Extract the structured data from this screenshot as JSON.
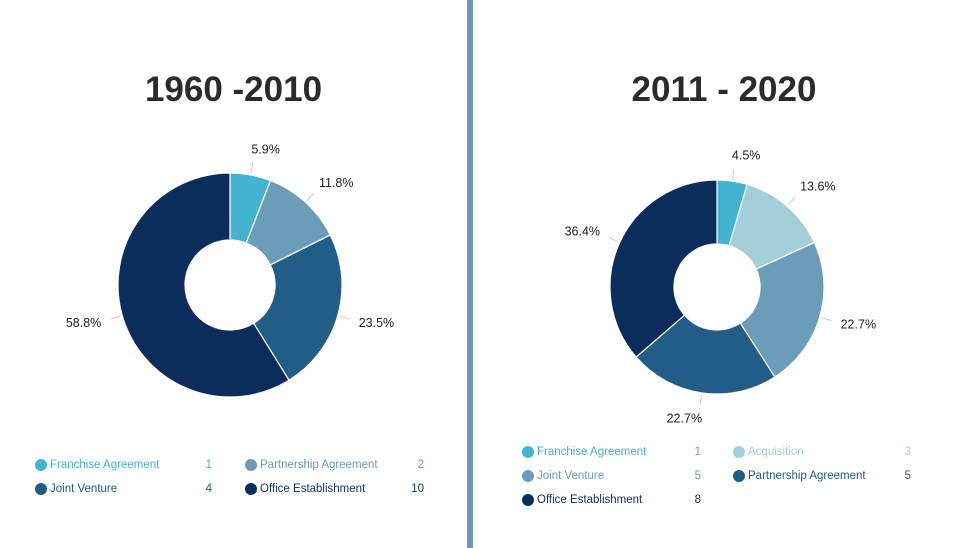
{
  "chart_data": [
    {
      "type": "pie",
      "title": "1960 -2010",
      "slices": [
        {
          "label": "Franchise Agreement",
          "value": 1,
          "percent_label": "5.9%",
          "color": "#44b3d1"
        },
        {
          "label": "Partnership Agreement",
          "value": 2,
          "percent_label": "11.8%",
          "color": "#6c9db8"
        },
        {
          "label": "Joint Venture",
          "value": 4,
          "percent_label": "23.5%",
          "color": "#215d87"
        },
        {
          "label": "Office Establishment",
          "value": 10,
          "percent_label": "58.8%",
          "color": "#0c2d5c"
        }
      ],
      "legend": [
        {
          "label": "Franchise Agreement",
          "value": "1",
          "color": "#44b3d1",
          "text_color": "#4aaed0"
        },
        {
          "label": "Partnership Agreement",
          "value": "2",
          "color": "#6c9db8",
          "text_color": "#6a9ab5"
        },
        {
          "label": "Joint Venture",
          "value": "4",
          "color": "#215d87",
          "text_color": "#235a82"
        },
        {
          "label": "Office Establishment",
          "value": "10",
          "color": "#0c2d5c",
          "text_color": "#14305a"
        }
      ]
    },
    {
      "type": "pie",
      "title": "2011 - 2020",
      "slices": [
        {
          "label": "Franchise Agreement",
          "value": 1,
          "percent_label": "4.5%",
          "color": "#44b3d1"
        },
        {
          "label": "Acquisition",
          "value": 3,
          "percent_label": "13.6%",
          "color": "#a4cfd9"
        },
        {
          "label": "Joint Venture",
          "value": 5,
          "percent_label": "22.7%",
          "color": "#6c9db8"
        },
        {
          "label": "Partnership Agreement",
          "value": 5,
          "percent_label": "22.7%",
          "color": "#215d87"
        },
        {
          "label": "Office Establishment",
          "value": 8,
          "percent_label": "36.4%",
          "color": "#0c2d5c"
        }
      ],
      "legend": [
        {
          "label": "Franchise Agreement",
          "value": "1",
          "color": "#44b3d1",
          "text_color": "#4aaed0"
        },
        {
          "label": "Acquisition",
          "value": "3",
          "color": "#a4cfd9",
          "text_color": "#a5cdd8"
        },
        {
          "label": "Joint Venture",
          "value": "5",
          "color": "#6c9db8",
          "text_color": "#6a9ab5"
        },
        {
          "label": "Partnership Agreement",
          "value": "5",
          "color": "#215d87",
          "text_color": "#235a82"
        },
        {
          "label": "Office Establishment",
          "value": "8",
          "color": "#0c2d5c",
          "text_color": "#14305a"
        }
      ]
    }
  ],
  "divider_color": "#6e96ae"
}
